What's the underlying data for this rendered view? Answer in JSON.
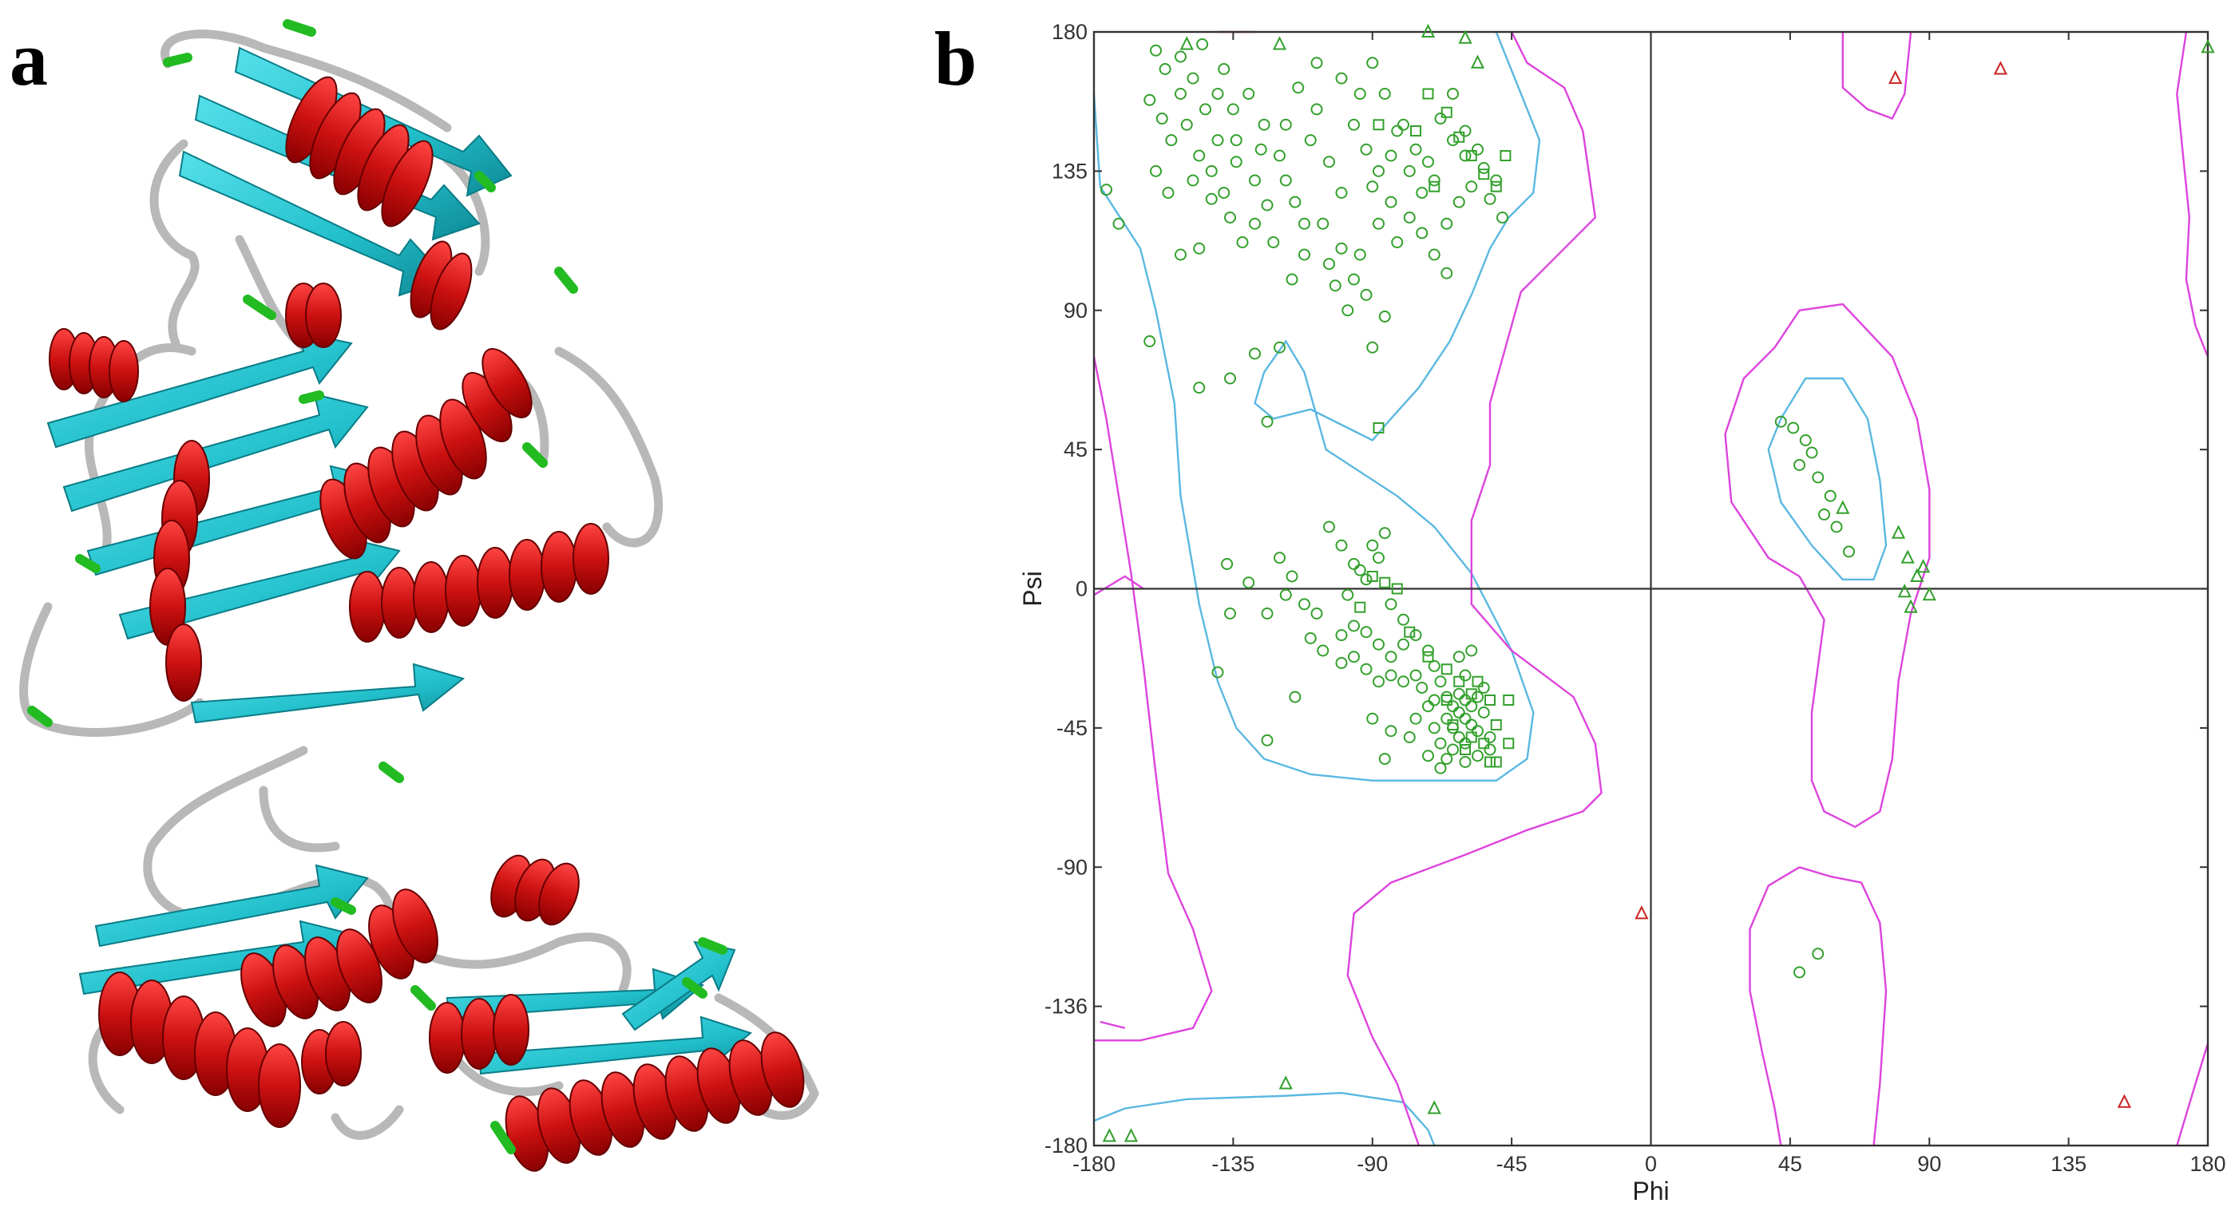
{
  "panels": {
    "a_label": "a",
    "b_label": "b"
  },
  "colors": {
    "helix": "#cc1111",
    "sheet": "#22c0cc",
    "coil": "#c4c4c4",
    "turn": "#22bb22",
    "favored_contour": "#5ab8e0",
    "allowed_contour": "#dd44dd",
    "core_marker": "#33a02c",
    "outlier_marker": "#cc2222"
  },
  "icons": {
    "protein_structure": "protein-ribbon-cartoon"
  },
  "chart_data": {
    "type": "scatter",
    "title": "",
    "xlabel": "Phi",
    "ylabel": "Psi",
    "xlim": [
      -180,
      180
    ],
    "ylim": [
      -180,
      180
    ],
    "x_ticks": [
      "-180",
      "-135",
      "-90",
      "-45",
      "0",
      "45",
      "90",
      "135",
      "180"
    ],
    "y_ticks": [
      "180",
      "135",
      "90",
      "45",
      "0",
      "-45",
      "-90",
      "-136",
      "-180"
    ],
    "grid": false,
    "zero_lines": true,
    "series": [
      {
        "marker": "circle",
        "color": "#33a02c",
        "points": [
          [
            -160,
            174
          ],
          [
            -157,
            168
          ],
          [
            -152,
            172
          ],
          [
            -148,
            165
          ],
          [
            -145,
            176
          ],
          [
            -140,
            160
          ],
          [
            -138,
            168
          ],
          [
            -135,
            155
          ],
          [
            -150,
            150
          ],
          [
            -155,
            145
          ],
          [
            -146,
            140
          ],
          [
            -142,
            135
          ],
          [
            -138,
            128
          ],
          [
            -134,
            145
          ],
          [
            -130,
            160
          ],
          [
            -125,
            150
          ],
          [
            -120,
            140
          ],
          [
            -118,
            132
          ],
          [
            -124,
            124
          ],
          [
            -128,
            118
          ],
          [
            -132,
            112
          ],
          [
            -115,
            125
          ],
          [
            -110,
            145
          ],
          [
            -108,
            155
          ],
          [
            -104,
            138
          ],
          [
            -100,
            128
          ],
          [
            -96,
            150
          ],
          [
            -92,
            142
          ],
          [
            -88,
            135
          ],
          [
            -84,
            125
          ],
          [
            -86,
            160
          ],
          [
            -90,
            170
          ],
          [
            -80,
            150
          ],
          [
            -76,
            142
          ],
          [
            -72,
            138
          ],
          [
            -68,
            152
          ],
          [
            -64,
            145
          ],
          [
            -60,
            140
          ],
          [
            -58,
            130
          ],
          [
            -62,
            125
          ],
          [
            -66,
            118
          ],
          [
            -70,
            132
          ],
          [
            -74,
            128
          ],
          [
            -78,
            120
          ],
          [
            -82,
            112
          ],
          [
            -88,
            118
          ],
          [
            -94,
            108
          ],
          [
            -100,
            110
          ],
          [
            -106,
            118
          ],
          [
            -112,
            108
          ],
          [
            -116,
            100
          ],
          [
            -122,
            112
          ],
          [
            -136,
            120
          ],
          [
            -142,
            126
          ],
          [
            -148,
            132
          ],
          [
            -156,
            128
          ],
          [
            -160,
            135
          ],
          [
            -162,
            158
          ],
          [
            -158,
            152
          ],
          [
            -152,
            160
          ],
          [
            -144,
            155
          ],
          [
            -140,
            145
          ],
          [
            -134,
            138
          ],
          [
            -128,
            132
          ],
          [
            -126,
            142
          ],
          [
            -118,
            150
          ],
          [
            -114,
            162
          ],
          [
            -108,
            170
          ],
          [
            -100,
            165
          ],
          [
            -94,
            160
          ],
          [
            -90,
            130
          ],
          [
            -84,
            140
          ],
          [
            -82,
            148
          ],
          [
            -78,
            135
          ],
          [
            -74,
            115
          ],
          [
            -70,
            108
          ],
          [
            -66,
            102
          ],
          [
            -92,
            95
          ],
          [
            -98,
            90
          ],
          [
            -86,
            88
          ],
          [
            -162,
            80
          ],
          [
            -146,
            65
          ],
          [
            -136,
            68
          ],
          [
            -128,
            76
          ],
          [
            -120,
            78
          ],
          [
            -124,
            54
          ],
          [
            -60,
            148
          ],
          [
            -56,
            142
          ],
          [
            -54,
            136
          ],
          [
            -52,
            126
          ],
          [
            -50,
            132
          ],
          [
            -48,
            120
          ],
          [
            -64,
            160
          ],
          [
            -112,
            118
          ],
          [
            -104,
            105
          ],
          [
            -96,
            100
          ],
          [
            -102,
            98
          ],
          [
            -90,
            78
          ],
          [
            -146,
            110
          ],
          [
            -176,
            129
          ],
          [
            -172,
            118
          ],
          [
            -152,
            108
          ],
          [
            -104,
            20
          ],
          [
            -100,
            14
          ],
          [
            -96,
            8
          ],
          [
            -92,
            3
          ],
          [
            -88,
            10
          ],
          [
            -84,
            -5
          ],
          [
            -80,
            -10
          ],
          [
            -76,
            -15
          ],
          [
            -72,
            -20
          ],
          [
            -70,
            -25
          ],
          [
            -68,
            -30
          ],
          [
            -66,
            -35
          ],
          [
            -64,
            -38
          ],
          [
            -62,
            -40
          ],
          [
            -60,
            -42
          ],
          [
            -58,
            -44
          ],
          [
            -56,
            -46
          ],
          [
            -54,
            -40
          ],
          [
            -52,
            -48
          ],
          [
            -60,
            -50
          ],
          [
            -62,
            -48
          ],
          [
            -64,
            -45
          ],
          [
            -66,
            -42
          ],
          [
            -68,
            -50
          ],
          [
            -70,
            -45
          ],
          [
            -58,
            -38
          ],
          [
            -56,
            -35
          ],
          [
            -54,
            -32
          ],
          [
            -60,
            -36
          ],
          [
            -62,
            -34
          ],
          [
            -64,
            -52
          ],
          [
            -66,
            -55
          ],
          [
            -60,
            -56
          ],
          [
            -56,
            -54
          ],
          [
            -52,
            -52
          ],
          [
            -72,
            -38
          ],
          [
            -76,
            -42
          ],
          [
            -80,
            -30
          ],
          [
            -84,
            -22
          ],
          [
            -88,
            -18
          ],
          [
            -92,
            -14
          ],
          [
            -96,
            -12
          ],
          [
            -100,
            -15
          ],
          [
            -108,
            -8
          ],
          [
            -112,
            -5
          ],
          [
            -118,
            -2
          ],
          [
            -124,
            -8
          ],
          [
            -130,
            2
          ],
          [
            -136,
            -8
          ],
          [
            -120,
            10
          ],
          [
            -116,
            4
          ],
          [
            -110,
            -16
          ],
          [
            -106,
            -20
          ],
          [
            -100,
            -24
          ],
          [
            -96,
            -22
          ],
          [
            -92,
            -26
          ],
          [
            -88,
            -30
          ],
          [
            -84,
            -28
          ],
          [
            -80,
            -18
          ],
          [
            -76,
            -28
          ],
          [
            -74,
            -32
          ],
          [
            -70,
            -36
          ],
          [
            -78,
            -48
          ],
          [
            -84,
            -46
          ],
          [
            -90,
            -42
          ],
          [
            -60,
            -28
          ],
          [
            -62,
            -22
          ],
          [
            -58,
            -20
          ],
          [
            -94,
            6
          ],
          [
            -90,
            14
          ],
          [
            -86,
            18
          ],
          [
            -98,
            -2
          ],
          [
            -140,
            -27
          ],
          [
            -115,
            -35
          ],
          [
            -124,
            -49
          ],
          [
            -137,
            8
          ],
          [
            -68,
            -58
          ],
          [
            -72,
            -54
          ],
          [
            -86,
            -55
          ],
          [
            42,
            54
          ],
          [
            46,
            52
          ],
          [
            50,
            48
          ],
          [
            52,
            44
          ],
          [
            48,
            40
          ],
          [
            54,
            36
          ],
          [
            58,
            30
          ],
          [
            56,
            24
          ],
          [
            60,
            20
          ],
          [
            64,
            12
          ],
          [
            48,
            -124
          ],
          [
            54,
            -118
          ]
        ]
      },
      {
        "marker": "triangle",
        "color": "#33a02c",
        "points": [
          [
            -150,
            176
          ],
          [
            -120,
            176
          ],
          [
            -72,
            180
          ],
          [
            -60,
            178
          ],
          [
            -56,
            170
          ],
          [
            -118,
            -160
          ],
          [
            -70,
            -168
          ],
          [
            -175,
            -177
          ],
          [
            -168,
            -177
          ],
          [
            62,
            26
          ],
          [
            80,
            18
          ],
          [
            83,
            10
          ],
          [
            86,
            4
          ],
          [
            88,
            7
          ],
          [
            82,
            -1
          ],
          [
            84,
            -6
          ],
          [
            90,
            -2
          ],
          [
            180,
            175
          ]
        ]
      },
      {
        "marker": "square",
        "color": "#33a02c",
        "points": [
          [
            -88,
            52
          ],
          [
            -72,
            160
          ],
          [
            -66,
            154
          ],
          [
            -62,
            146
          ],
          [
            -58,
            140
          ],
          [
            -54,
            134
          ],
          [
            -50,
            130
          ],
          [
            -47,
            140
          ],
          [
            -76,
            148
          ],
          [
            -70,
            130
          ],
          [
            -88,
            150
          ],
          [
            -90,
            4
          ],
          [
            -86,
            2
          ],
          [
            -82,
            0
          ],
          [
            -94,
            -6
          ],
          [
            -78,
            -14
          ],
          [
            -72,
            -22
          ],
          [
            -66,
            -26
          ],
          [
            -62,
            -30
          ],
          [
            -58,
            -34
          ],
          [
            -52,
            -36
          ],
          [
            -46,
            -36
          ],
          [
            -56,
            -30
          ],
          [
            -54,
            -50
          ],
          [
            -50,
            -44
          ],
          [
            -64,
            -44
          ],
          [
            -58,
            -48
          ],
          [
            -60,
            -52
          ],
          [
            -52,
            -56
          ],
          [
            -46,
            -50
          ],
          [
            -50,
            -56
          ],
          [
            -66,
            -36
          ]
        ]
      },
      {
        "marker": "triangle",
        "color": "#cc2222",
        "points": [
          [
            79,
            165
          ],
          [
            113,
            168
          ],
          [
            -3,
            -105
          ],
          [
            153,
            -166
          ]
        ]
      }
    ]
  }
}
